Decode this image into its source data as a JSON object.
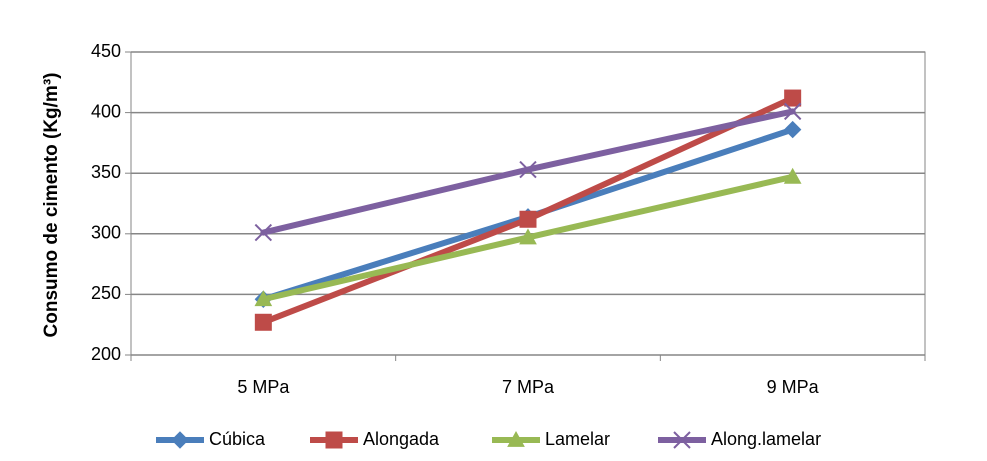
{
  "chart_data": {
    "type": "line",
    "title": "",
    "xlabel": "",
    "ylabel": "Consumo de cimento (Kg/m³)",
    "categories": [
      "5 MPa",
      "7 MPa",
      "9 MPa"
    ],
    "ylim": [
      200,
      450
    ],
    "yticks": [
      200,
      250,
      300,
      350,
      400,
      450
    ],
    "grid": true,
    "legend_position": "bottom",
    "series": [
      {
        "name": "Cúbica",
        "values": [
          246,
          314,
          386
        ],
        "color": "#4A7EBB",
        "marker": "diamond"
      },
      {
        "name": "Alongada",
        "values": [
          227,
          312,
          412
        ],
        "color": "#BE4B48",
        "marker": "square"
      },
      {
        "name": "Lamelar",
        "values": [
          246,
          297,
          347
        ],
        "color": "#98B954",
        "marker": "triangle"
      },
      {
        "name": "Along.lamelar",
        "values": [
          301,
          353,
          401
        ],
        "color": "#7D60A0",
        "marker": "x"
      }
    ]
  }
}
